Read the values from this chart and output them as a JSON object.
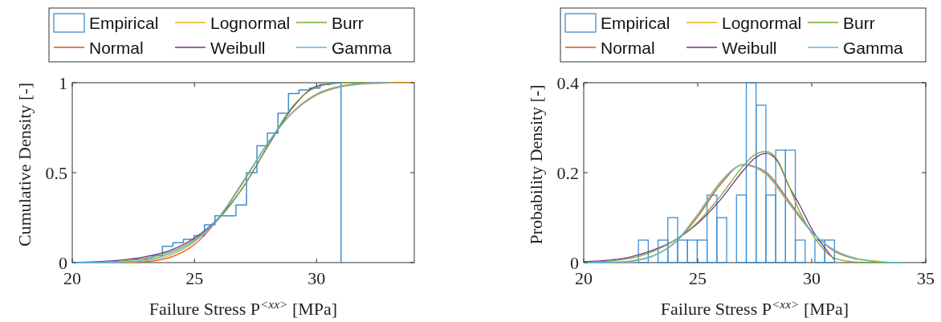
{
  "chart_data": [
    {
      "type": "line",
      "xlabel": "Failure Stress P$^{<xx>}$ [MPa]",
      "ylabel": "Cumulative Density [-]",
      "xlim": [
        20,
        34
      ],
      "ylim": [
        0,
        1
      ],
      "xticks": [
        20,
        25,
        30
      ],
      "yticks": [
        0,
        0.5,
        1
      ],
      "legend": "top",
      "series": [
        {
          "name": "Empirical",
          "type": "step",
          "color": "#3d8fd0",
          "x": [
            22.4,
            22.83,
            23.26,
            23.69,
            24.12,
            24.55,
            24.98,
            25.41,
            25.84,
            26.27,
            26.7,
            27.13,
            27.56,
            27.99,
            28.42,
            28.85,
            29.28,
            29.71,
            30.14,
            30.57,
            31.0
          ],
          "values": [
            0.02,
            0.02,
            0.04,
            0.09,
            0.11,
            0.13,
            0.15,
            0.21,
            0.26,
            0.26,
            0.32,
            0.5,
            0.65,
            0.72,
            0.83,
            0.94,
            0.96,
            0.97,
            0.99,
            1.0,
            0
          ]
        },
        {
          "name": "Normal",
          "color": "#d95319",
          "x": [
            22,
            23,
            24,
            25,
            26,
            27,
            28,
            29,
            30,
            31,
            32,
            33,
            34
          ],
          "values": [
            0.001,
            0.005,
            0.028,
            0.1,
            0.247,
            0.447,
            0.663,
            0.834,
            0.936,
            0.981,
            0.996,
            0.999,
            1
          ]
        },
        {
          "name": "Lognormal",
          "color": "#edb120",
          "x": [
            22,
            23,
            24,
            25,
            26,
            27,
            28,
            29,
            30,
            31,
            32,
            33,
            34
          ],
          "values": [
            0.002,
            0.011,
            0.04,
            0.115,
            0.253,
            0.455,
            0.664,
            0.83,
            0.93,
            0.976,
            0.993,
            0.998,
            1
          ]
        },
        {
          "name": "Weibull",
          "color": "#7e2f8e",
          "x": [
            20,
            21,
            22,
            23,
            24,
            25,
            26,
            27,
            28,
            29,
            30,
            31
          ],
          "values": [
            0.001,
            0.005,
            0.014,
            0.033,
            0.068,
            0.136,
            0.249,
            0.42,
            0.645,
            0.858,
            0.98,
            0.999
          ]
        },
        {
          "name": "Burr",
          "color": "#77ac30",
          "x": [
            21,
            22,
            23,
            24,
            25,
            26,
            27,
            28,
            29,
            30,
            31,
            32
          ],
          "values": [
            0.002,
            0.008,
            0.024,
            0.059,
            0.127,
            0.243,
            0.42,
            0.65,
            0.865,
            0.975,
            0.998,
            1
          ]
        },
        {
          "name": "Gamma",
          "color": "#4dbeee",
          "x": [
            20,
            22,
            23,
            24,
            25,
            26,
            27,
            28,
            29,
            30,
            31,
            32,
            33
          ],
          "values": [
            0,
            0.003,
            0.015,
            0.05,
            0.12,
            0.25,
            0.452,
            0.664,
            0.832,
            0.933,
            0.979,
            0.995,
            0.999
          ]
        }
      ]
    },
    {
      "type": "line",
      "xlabel": "Failure Stress P$^{<xx>}$ [MPa]",
      "ylabel": "Probability Density [-]",
      "xlim": [
        20,
        35
      ],
      "ylim": [
        0,
        0.4
      ],
      "xticks": [
        20,
        25,
        30,
        35
      ],
      "yticks": [
        0,
        0.2,
        0.4
      ],
      "legend": "top",
      "series": [
        {
          "name": "Empirical",
          "type": "histogram",
          "color": "#3d8fd0",
          "bins": [
            22.4,
            22.83,
            23.26,
            23.69,
            24.12,
            24.55,
            24.98,
            25.41,
            25.84,
            26.27,
            26.7,
            27.13,
            27.56,
            27.99,
            28.42,
            28.85,
            29.28,
            29.71,
            30.14,
            30.57,
            31.0
          ],
          "values": [
            0.05,
            0,
            0.05,
            0.1,
            0.05,
            0.05,
            0.05,
            0.15,
            0.1,
            0,
            0.15,
            0.4,
            0.35,
            0.15,
            0.25,
            0.25,
            0.05,
            0,
            0.05,
            0.05
          ]
        },
        {
          "name": "Normal",
          "color": "#d95319",
          "x": [
            22,
            23,
            24,
            25,
            26,
            27,
            28,
            29,
            30,
            31,
            32
          ],
          "values": [
            0.003,
            0.014,
            0.044,
            0.102,
            0.174,
            0.218,
            0.201,
            0.137,
            0.069,
            0.025,
            0.007
          ]
        },
        {
          "name": "Lognormal",
          "color": "#edb120",
          "x": [
            22,
            23,
            24,
            25,
            26,
            27,
            28,
            29,
            30,
            31,
            32,
            33
          ],
          "values": [
            0.002,
            0.013,
            0.045,
            0.108,
            0.18,
            0.217,
            0.196,
            0.131,
            0.068,
            0.028,
            0.009,
            0.003
          ]
        },
        {
          "name": "Weibull",
          "color": "#7e2f8e",
          "x": [
            20,
            21,
            22,
            23,
            24,
            25,
            26,
            27,
            27.5,
            28,
            28.5,
            29,
            29.5,
            30,
            31
          ],
          "values": [
            0.002,
            0.005,
            0.012,
            0.027,
            0.05,
            0.087,
            0.14,
            0.205,
            0.232,
            0.243,
            0.225,
            0.17,
            0.125,
            0.075,
            0.006
          ]
        },
        {
          "name": "Burr",
          "color": "#77ac30",
          "x": [
            20,
            21,
            22,
            23,
            24,
            25,
            26,
            27,
            27.5,
            28,
            28.5,
            29,
            29.5,
            30,
            31,
            32,
            33,
            34
          ],
          "values": [
            0.001,
            0.003,
            0.009,
            0.024,
            0.05,
            0.09,
            0.148,
            0.215,
            0.24,
            0.247,
            0.228,
            0.17,
            0.11,
            0.065,
            0.01,
            0.001,
            0,
            0
          ]
        },
        {
          "name": "Gamma",
          "color": "#4dbeee",
          "x": [
            20,
            21,
            22,
            23,
            24,
            25,
            26,
            27,
            28,
            29,
            30,
            31,
            32,
            33,
            34
          ],
          "values": [
            0,
            0.001,
            0.003,
            0.014,
            0.045,
            0.106,
            0.178,
            0.218,
            0.198,
            0.133,
            0.068,
            0.027,
            0.008,
            0.002,
            0
          ]
        }
      ]
    }
  ]
}
